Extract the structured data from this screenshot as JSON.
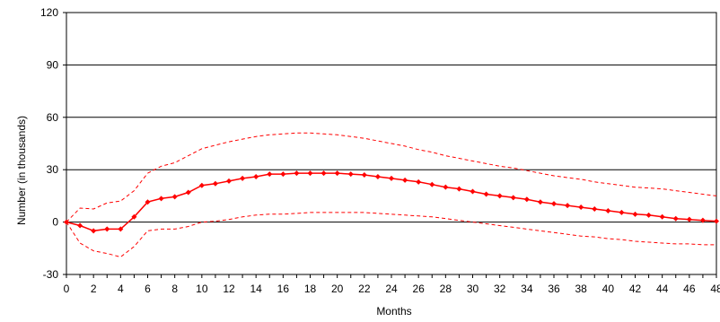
{
  "chart_data": {
    "type": "line",
    "xlabel": "Months",
    "ylabel": "Number (in thousands)",
    "xlim": [
      0,
      48
    ],
    "ylim": [
      -30,
      120
    ],
    "yticks": [
      -30,
      0,
      30,
      60,
      90,
      120
    ],
    "xticks": [
      0,
      2,
      4,
      6,
      8,
      10,
      12,
      14,
      16,
      18,
      20,
      22,
      24,
      26,
      28,
      30,
      32,
      34,
      36,
      38,
      40,
      42,
      44,
      46,
      48
    ],
    "grid": "horizontal",
    "colors": {
      "series": "#ff0000",
      "axis": "#000000",
      "grid": "#000000"
    },
    "x": [
      0,
      1,
      2,
      3,
      4,
      5,
      6,
      7,
      8,
      9,
      10,
      11,
      12,
      13,
      14,
      15,
      16,
      17,
      18,
      19,
      20,
      21,
      22,
      23,
      24,
      25,
      26,
      27,
      28,
      29,
      30,
      31,
      32,
      33,
      34,
      35,
      36,
      37,
      38,
      39,
      40,
      41,
      42,
      43,
      44,
      45,
      46,
      47,
      48
    ],
    "series": [
      {
        "role": "estimate",
        "style": "solid-diamond",
        "values": [
          0,
          -2,
          -5,
          -4,
          -4,
          3,
          11.5,
          13.5,
          14.5,
          17,
          21,
          22,
          23.5,
          25,
          26,
          27.5,
          27.5,
          28,
          28,
          28,
          28,
          27.5,
          27,
          26,
          25,
          24,
          23,
          21.5,
          20,
          19,
          17.5,
          16,
          15,
          14,
          13,
          11.5,
          10.5,
          9.5,
          8.5,
          7.5,
          6.5,
          5.5,
          4.5,
          4,
          3,
          2,
          1.5,
          1,
          0.5
        ]
      },
      {
        "role": "upper-band",
        "style": "dashed",
        "values": [
          0,
          8,
          7.5,
          11,
          12,
          18,
          28,
          32,
          34,
          38,
          42,
          44,
          46,
          47.5,
          49,
          50,
          50.5,
          51,
          51,
          50.5,
          50,
          49,
          48,
          46.5,
          45,
          43.5,
          41.5,
          40,
          38,
          36.5,
          35,
          33.5,
          32,
          31,
          29.5,
          28,
          26.5,
          25.5,
          24.5,
          23,
          22,
          21,
          20,
          19.5,
          19,
          18,
          17,
          16,
          15
        ]
      },
      {
        "role": "lower-band",
        "style": "dashed",
        "values": [
          0,
          -12,
          -16.5,
          -18,
          -20,
          -14,
          -5,
          -4,
          -4,
          -2.5,
          0,
          0.5,
          1.5,
          3,
          4,
          4.5,
          4.5,
          5,
          5.5,
          5.5,
          5.5,
          5.5,
          5.5,
          5,
          4.5,
          4,
          3.5,
          3,
          2,
          1,
          0,
          -1,
          -2,
          -3,
          -4,
          -5,
          -6,
          -7,
          -8,
          -8.5,
          -9.5,
          -10,
          -11,
          -11.5,
          -12,
          -12.5,
          -12.5,
          -13,
          -13
        ]
      }
    ]
  }
}
